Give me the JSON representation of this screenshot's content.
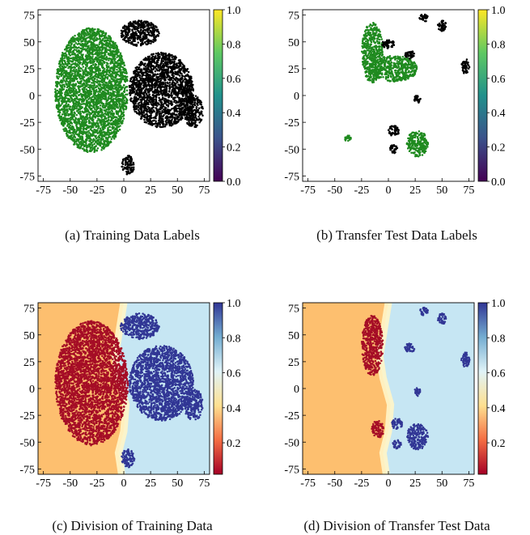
{
  "figure": {
    "captions": [
      "(a) Training Data Labels",
      "(b) Transfer Test Data Labels",
      "(c) Division of Training Data",
      "(d) Division of Transfer Test Data"
    ]
  },
  "colors": {
    "class_0_label": "#000000",
    "class_1_label": "#1f8a1f",
    "class_low_pred": "#a50d26",
    "class_high_pred": "#313695",
    "region_low": "#fdbf6f",
    "region_high": "#c6e6f3",
    "colormap_top": [
      "#440154",
      "#3b528b",
      "#21918c",
      "#5ec962",
      "#fde725"
    ],
    "colormap_bottom": [
      "#a50026",
      "#f46d43",
      "#fee090",
      "#e0f3f8",
      "#74add1",
      "#313695"
    ]
  },
  "chart_data": [
    {
      "id": "a",
      "type": "scatter",
      "title": "",
      "xlabel": "",
      "ylabel": "",
      "xlim": [
        -80,
        80
      ],
      "ylim": [
        -80,
        80
      ],
      "xticks": [
        -75,
        -50,
        -25,
        0,
        25,
        50,
        75
      ],
      "yticks": [
        -75,
        -50,
        -25,
        0,
        25,
        50,
        75
      ],
      "colorbar": {
        "colormap": "viridis",
        "ticks": [
          0.0,
          0.2,
          0.4,
          0.6,
          0.8,
          1.0
        ],
        "tick_labels": [
          "0.0",
          "0.2",
          "0.4",
          "0.6",
          "0.8",
          "1.0"
        ]
      },
      "series": [
        {
          "label_value": 1,
          "color": "#1f8a1f",
          "regions": [
            {
              "cx": -30,
              "cy": 5,
              "rx": 34,
              "ry": 58
            }
          ]
        },
        {
          "label_value": 0,
          "color": "#000000",
          "regions": [
            {
              "cx": 35,
              "cy": 5,
              "rx": 30,
              "ry": 35
            },
            {
              "cx": 15,
              "cy": 58,
              "rx": 18,
              "ry": 12
            },
            {
              "cx": 4,
              "cy": -65,
              "rx": 6,
              "ry": 9
            },
            {
              "cx": 65,
              "cy": -15,
              "rx": 9,
              "ry": 15
            }
          ]
        }
      ]
    },
    {
      "id": "b",
      "type": "scatter",
      "title": "",
      "xlabel": "",
      "ylabel": "",
      "xlim": [
        -80,
        80
      ],
      "ylim": [
        -80,
        80
      ],
      "xticks": [
        -75,
        -50,
        -25,
        0,
        25,
        50,
        75
      ],
      "yticks": [
        -75,
        -50,
        -25,
        0,
        25,
        50,
        75
      ],
      "colorbar": {
        "colormap": "viridis",
        "ticks": [
          0.0,
          0.2,
          0.4,
          0.6,
          0.8,
          1.0
        ],
        "tick_labels": [
          "0.0",
          "0.2",
          "0.4",
          "0.6",
          "0.8",
          "1.0"
        ]
      },
      "series": [
        {
          "label_value": 1,
          "color": "#1f8a1f",
          "regions": [
            {
              "cx": 27,
              "cy": -45,
              "rx": 10,
              "ry": 12
            },
            {
              "cx": -15,
              "cy": 40,
              "rx": 10,
              "ry": 28
            },
            {
              "cx": 5,
              "cy": 25,
              "rx": 22,
              "ry": 12
            },
            {
              "cx": -38,
              "cy": -40,
              "rx": 3,
              "ry": 3
            }
          ]
        },
        {
          "label_value": 0,
          "color": "#000000",
          "regions": [
            {
              "cx": 33,
              "cy": 72,
              "rx": 4,
              "ry": 4
            },
            {
              "cx": 50,
              "cy": 65,
              "rx": 4,
              "ry": 5
            },
            {
              "cx": 0,
              "cy": 48,
              "rx": 6,
              "ry": 4
            },
            {
              "cx": 20,
              "cy": 38,
              "rx": 5,
              "ry": 4
            },
            {
              "cx": 72,
              "cy": 27,
              "rx": 4,
              "ry": 7
            },
            {
              "cx": 27,
              "cy": -3,
              "rx": 3,
              "ry": 4
            },
            {
              "cx": 5,
              "cy": -33,
              "rx": 5,
              "ry": 5
            },
            {
              "cx": 5,
              "cy": -50,
              "rx": 4,
              "ry": 4
            }
          ]
        }
      ]
    },
    {
      "id": "c",
      "type": "scatter",
      "title": "",
      "xlabel": "",
      "ylabel": "",
      "xlim": [
        -80,
        80
      ],
      "ylim": [
        -80,
        80
      ],
      "xticks": [
        -75,
        -50,
        -25,
        0,
        25,
        50,
        75
      ],
      "yticks": [
        -75,
        -50,
        -25,
        0,
        25,
        50,
        75
      ],
      "colorbar": {
        "colormap": "RdYlBu",
        "ticks": [
          0.2,
          0.4,
          0.6,
          0.8,
          1.0
        ],
        "tick_labels": [
          "0.2",
          "0.4",
          "0.6",
          "0.8",
          "1.0"
        ]
      },
      "decision_boundary_x": [
        [
          80,
          0
        ],
        [
          55,
          -4
        ],
        [
          30,
          -8
        ],
        [
          10,
          -5
        ],
        [
          -15,
          2
        ],
        [
          -40,
          0
        ],
        [
          -60,
          -5
        ],
        [
          -80,
          -2
        ]
      ],
      "series": [
        {
          "label_value": 0,
          "color": "#a50d26",
          "regions": [
            {
              "cx": -30,
              "cy": 5,
              "rx": 34,
              "ry": 58
            }
          ]
        },
        {
          "label_value": 1,
          "color": "#313695",
          "regions": [
            {
              "cx": 35,
              "cy": 5,
              "rx": 30,
              "ry": 35
            },
            {
              "cx": 15,
              "cy": 58,
              "rx": 18,
              "ry": 12
            },
            {
              "cx": 4,
              "cy": -65,
              "rx": 6,
              "ry": 9
            },
            {
              "cx": 65,
              "cy": -15,
              "rx": 9,
              "ry": 15
            }
          ]
        }
      ]
    },
    {
      "id": "d",
      "type": "scatter",
      "title": "",
      "xlabel": "",
      "ylabel": "",
      "xlim": [
        -80,
        80
      ],
      "ylim": [
        -80,
        80
      ],
      "xticks": [
        -75,
        -50,
        -25,
        0,
        25,
        50,
        75
      ],
      "yticks": [
        -75,
        -50,
        -25,
        0,
        25,
        50,
        75
      ],
      "colorbar": {
        "colormap": "RdYlBu",
        "ticks": [
          0.2,
          0.4,
          0.6,
          0.8,
          1.0
        ],
        "tick_labels": [
          "0.2",
          "0.4",
          "0.6",
          "0.8",
          "1.0"
        ]
      },
      "decision_boundary_x": [
        [
          80,
          0
        ],
        [
          55,
          -4
        ],
        [
          30,
          -8
        ],
        [
          10,
          -5
        ],
        [
          -15,
          2
        ],
        [
          -40,
          0
        ],
        [
          -60,
          -5
        ],
        [
          -80,
          -2
        ]
      ],
      "series": [
        {
          "label_value": 0,
          "color": "#a50d26",
          "regions": [
            {
              "cx": -15,
              "cy": 40,
              "rx": 10,
              "ry": 28
            },
            {
              "cx": -10,
              "cy": -38,
              "rx": 6,
              "ry": 8
            }
          ]
        },
        {
          "label_value": 1,
          "color": "#313695",
          "regions": [
            {
              "cx": 27,
              "cy": -45,
              "rx": 10,
              "ry": 12
            },
            {
              "cx": 33,
              "cy": 72,
              "rx": 4,
              "ry": 4
            },
            {
              "cx": 50,
              "cy": 65,
              "rx": 4,
              "ry": 5
            },
            {
              "cx": 20,
              "cy": 38,
              "rx": 5,
              "ry": 4
            },
            {
              "cx": 72,
              "cy": 27,
              "rx": 4,
              "ry": 7
            },
            {
              "cx": 27,
              "cy": -3,
              "rx": 3,
              "ry": 4
            },
            {
              "cx": 8,
              "cy": -33,
              "rx": 5,
              "ry": 5
            },
            {
              "cx": 8,
              "cy": -52,
              "rx": 4,
              "ry": 4
            }
          ]
        }
      ]
    }
  ]
}
